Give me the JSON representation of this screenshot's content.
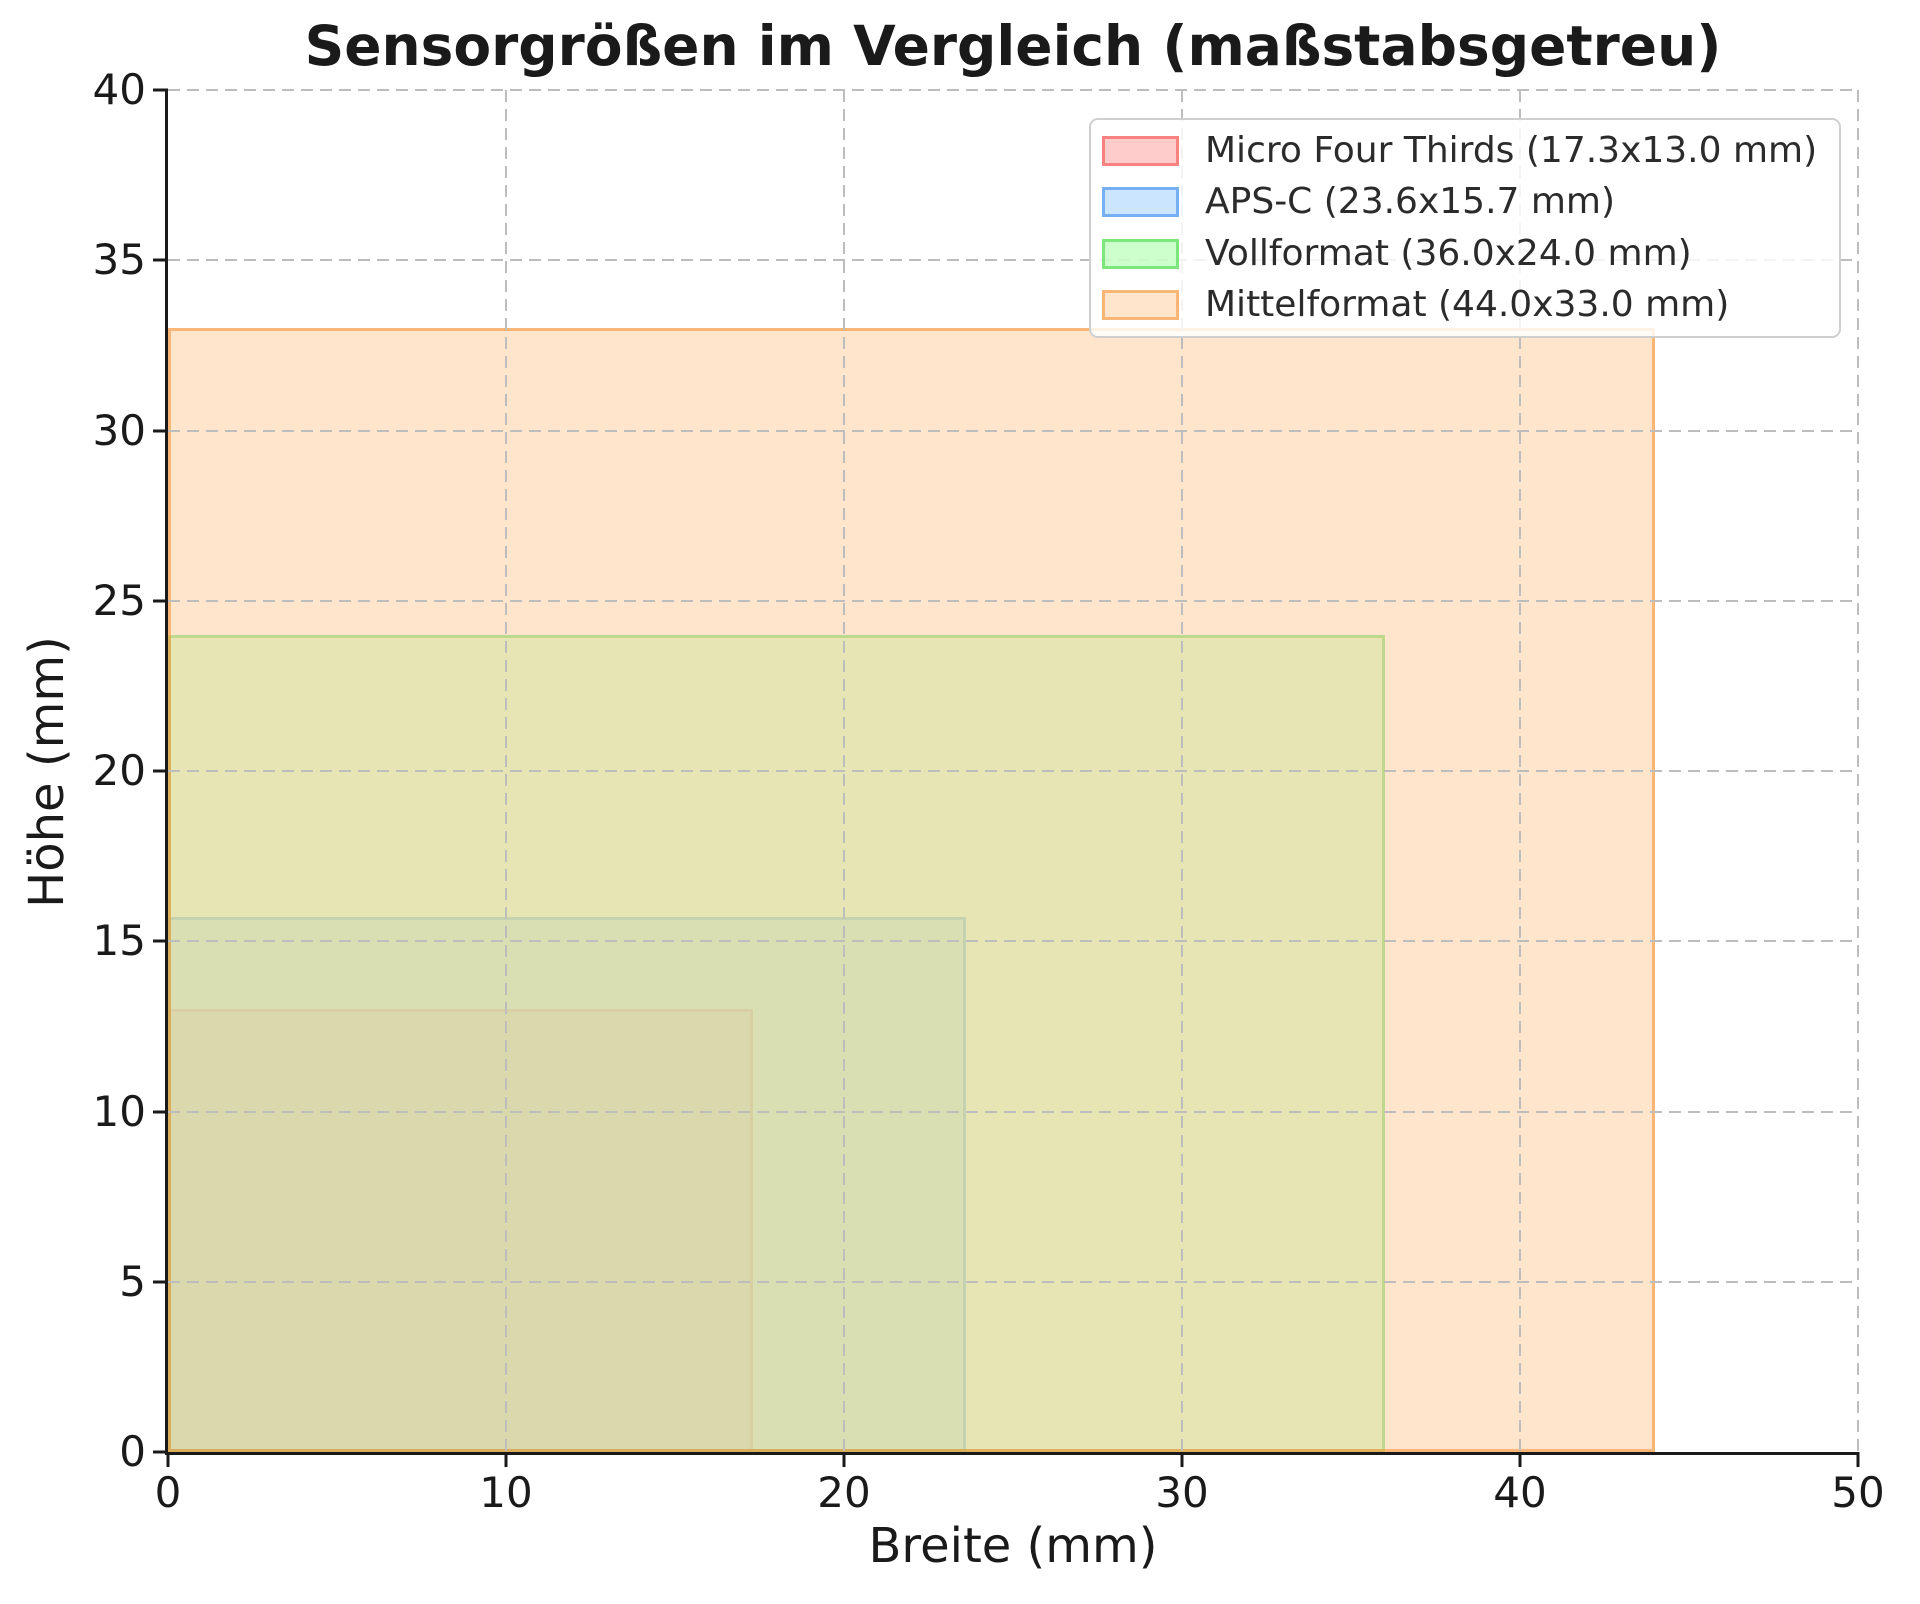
{
  "title": "Sensorgrößen im Vergleich (maßstabsgetreu)",
  "axes": {
    "x_label": "Breite (mm)",
    "y_label": "Höhe (mm)"
  },
  "chart_data": {
    "type": "area",
    "mark": "nested translucent rectangles anchored at origin (0,0), drawn to scale",
    "title": "Sensorgrößen im Vergleich (maßstabsgetreu)",
    "xlabel": "Breite (mm)",
    "ylabel": "Höhe (mm)",
    "xlim": [
      0,
      50
    ],
    "ylim": [
      0,
      40
    ],
    "x_ticks": [
      0,
      10,
      20,
      30,
      40,
      50
    ],
    "y_ticks": [
      0,
      5,
      10,
      15,
      20,
      25,
      30,
      35,
      40
    ],
    "grid": true,
    "grid_style": "dashed",
    "legend_position": "upper right",
    "series": [
      {
        "slug": "micro-four-thirds",
        "name": "Micro Four Thirds",
        "width_mm": 17.3,
        "height_mm": 13.0,
        "label": "Micro Four Thirds (17.3x13.0 mm)",
        "fill": "rgba(255,153,153,0.5)",
        "edge": "rgba(240,70,70,0.55)"
      },
      {
        "slug": "aps-c",
        "name": "APS-C",
        "width_mm": 23.6,
        "height_mm": 15.7,
        "label": "APS-C (23.6x15.7 mm)",
        "fill": "rgba(153,204,255,0.5)",
        "edge": "rgba(60,140,235,0.6)"
      },
      {
        "slug": "vollformat",
        "name": "Vollformat",
        "width_mm": 36.0,
        "height_mm": 24.0,
        "label": "Vollformat (36.0x24.0 mm)",
        "fill": "rgba(153,255,153,0.5)",
        "edge": "rgba(70,215,70,0.6)"
      },
      {
        "slug": "mittelformat",
        "name": "Mittelformat",
        "width_mm": 44.0,
        "height_mm": 33.0,
        "label": "Mittelformat (44.0x33.0 mm)",
        "fill": "rgba(255,204,153,0.5)",
        "edge": "rgba(245,150,60,0.6)"
      }
    ]
  },
  "colors": {
    "grid": "#bdbdbd",
    "spine": "#1a1a1a",
    "text": "#1a1a1a",
    "legend_border": "#cfcfcf",
    "legend_bg": "rgba(255,255,255,0.82)"
  }
}
